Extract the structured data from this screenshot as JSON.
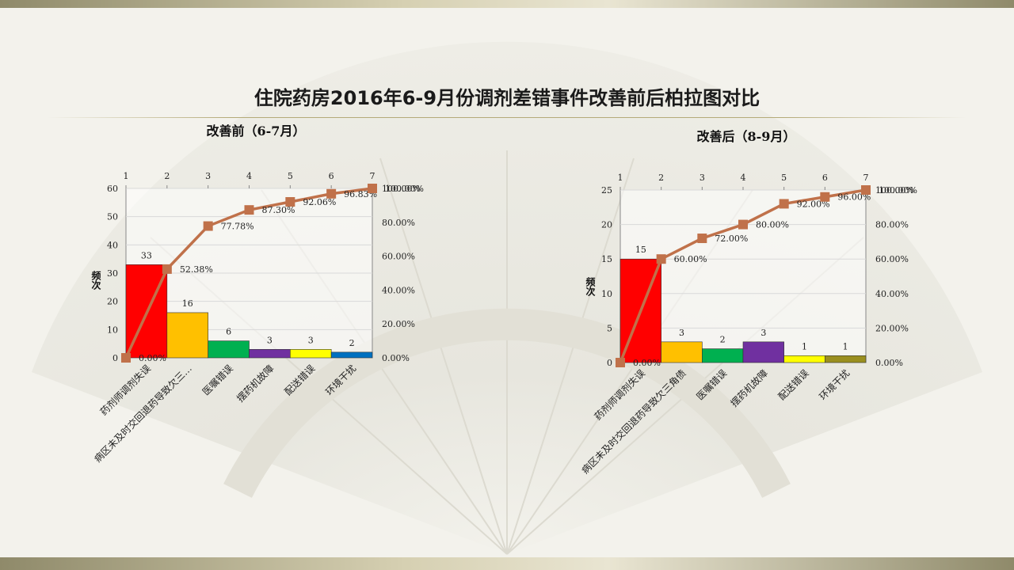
{
  "page": {
    "title": "住院药房2016年6-9月份调剂差错事件改善前后柏拉图对比"
  },
  "colors": {
    "line": "#c0714a",
    "bars": [
      "#ff0000",
      "#ffc000",
      "#00b050",
      "#7030a0",
      "#ffff00",
      "#0070c0"
    ]
  },
  "chart_data": [
    {
      "type": "bar",
      "title": "改善前（6-7月）",
      "ylabel": "频次",
      "categories": [
        "药剂师调剂失误",
        "病区未及时交回退药导致欠三…",
        "医嘱错误",
        "摆药机故障",
        "配送错误",
        "环境干扰"
      ],
      "series": [
        {
          "type": "bar",
          "values": [
            33,
            16,
            6,
            3,
            3,
            2
          ]
        },
        {
          "type": "line",
          "x": [
            1,
            2,
            3,
            4,
            5,
            6,
            7
          ],
          "values": [
            0,
            52.38,
            77.78,
            87.3,
            92.06,
            96.83,
            100.0
          ],
          "labels": [
            "0.00%",
            "52.38%",
            "77.78%",
            "87.30%",
            "92.06%",
            "96.83%",
            "100.00%"
          ]
        }
      ],
      "bar_labels": [
        "33",
        "16",
        "6",
        "3",
        "3",
        "2"
      ],
      "bar_colors": [
        "#ff0000",
        "#ffc000",
        "#00b050",
        "#7030a0",
        "#ffff00",
        "#0070c0"
      ],
      "ylim": [
        0,
        60
      ],
      "yticks": [
        "0",
        "10",
        "20",
        "30",
        "40",
        "50",
        "60"
      ],
      "y2lim": [
        0,
        100
      ],
      "y2ticks": [
        "0.00%",
        "20.00%",
        "40.00%",
        "60.00%",
        "80.00%",
        "100.00%"
      ],
      "x2ticks": [
        "1",
        "2",
        "3",
        "4",
        "5",
        "6",
        "7"
      ],
      "grid": true
    },
    {
      "type": "bar",
      "title": "改善后（8-9月）",
      "ylabel": "频次",
      "categories": [
        "药剂师调剂失误",
        "病区未及时交回退药导致欠三角债",
        "医嘱错误",
        "摆药机故障",
        "配送错误",
        "环境干扰"
      ],
      "series": [
        {
          "type": "bar",
          "values": [
            15,
            3,
            2,
            3,
            1,
            1
          ]
        },
        {
          "type": "line",
          "x": [
            1,
            2,
            3,
            4,
            5,
            6,
            7
          ],
          "values": [
            0,
            60.0,
            72.0,
            80.0,
            92.0,
            96.0,
            100.0
          ],
          "labels": [
            "0.00%",
            "60.00%",
            "72.00%",
            "80.00%",
            "92.00%",
            "96.00%",
            "100.00%"
          ]
        }
      ],
      "bar_labels": [
        "15",
        "3",
        "2",
        "3",
        "1",
        "1"
      ],
      "bar_colors": [
        "#ff0000",
        "#ffc000",
        "#00b050",
        "#7030a0",
        "#ffff00",
        "#9a8f1f"
      ],
      "ylim": [
        0,
        25
      ],
      "yticks": [
        "0",
        "5",
        "10",
        "15",
        "20",
        "25"
      ],
      "y2lim": [
        0,
        100
      ],
      "y2ticks": [
        "0.00%",
        "20.00%",
        "40.00%",
        "60.00%",
        "80.00%",
        "100.00%"
      ],
      "x2ticks": [
        "1",
        "2",
        "3",
        "4",
        "5",
        "6",
        "7"
      ],
      "grid": true
    }
  ]
}
